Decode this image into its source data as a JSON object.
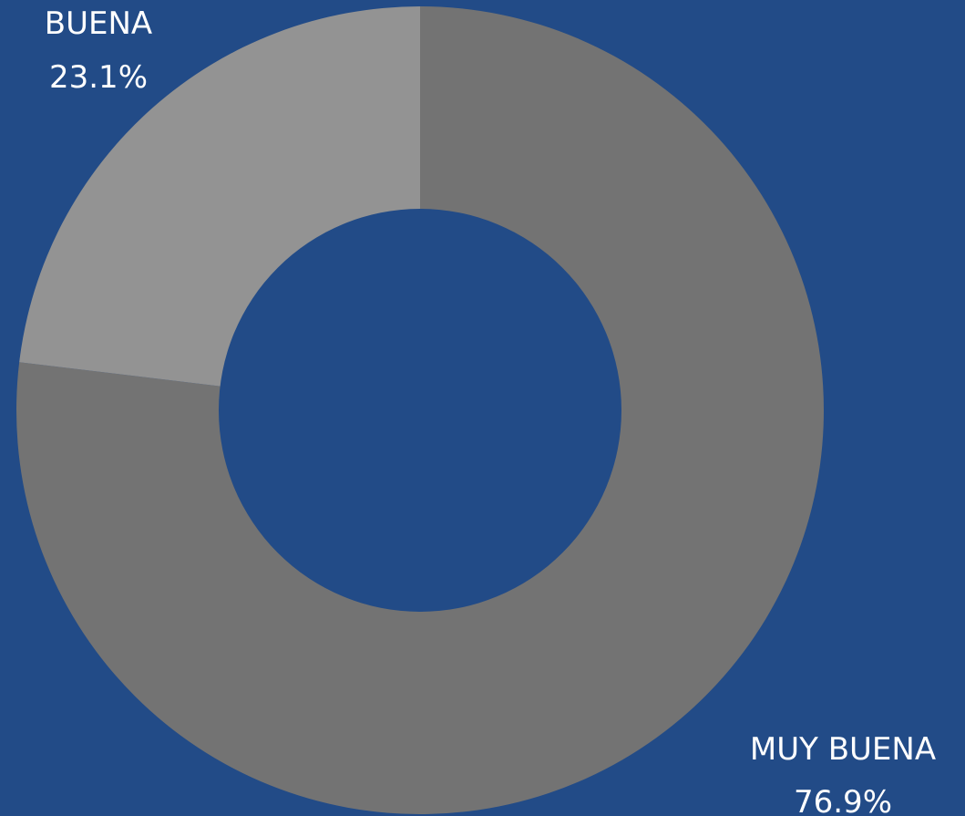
{
  "colors": {
    "background": "#224b87",
    "hole": "#224b87",
    "label_text": "#ffffff"
  },
  "chart_data": {
    "type": "pie",
    "title": "",
    "donut": true,
    "start": "12 o'clock",
    "direction": "clockwise",
    "slices": [
      {
        "label": "MUY BUENA",
        "value": 76.9,
        "value_label": "76.9%",
        "color": "#737373"
      },
      {
        "label": "BUENA",
        "value": 23.1,
        "value_label": "23.1%",
        "color": "#939393"
      }
    ],
    "legend": "none",
    "grid": false
  }
}
